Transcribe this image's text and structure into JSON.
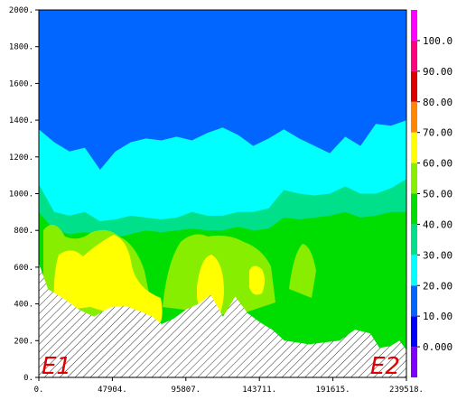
{
  "chart_data": {
    "type": "filled-contour cross-section",
    "title": "",
    "xlabel": "",
    "ylabel": "",
    "xlim": [
      0,
      239518
    ],
    "ylim": [
      0,
      2000
    ],
    "grid": false,
    "x_ticks": [
      0,
      47904,
      95807,
      143711,
      191615,
      239518
    ],
    "x_tick_labels": [
      "0.",
      "47904.",
      "95807.",
      "143711.",
      "191615.",
      "239518."
    ],
    "y_ticks": [
      0,
      200,
      400,
      600,
      800,
      1000,
      1200,
      1400,
      1600,
      1800,
      2000
    ],
    "y_tick_labels": [
      "0.",
      "200.",
      "400.",
      "600.",
      "800.",
      "1000.",
      "1200.",
      "1400.",
      "1600.",
      "1800.",
      "2000."
    ],
    "end_labels": [
      "E1",
      "E2"
    ],
    "terrain_fill": "hatched",
    "colorbar": {
      "placement": "right",
      "levels": [
        0,
        10,
        20,
        30,
        40,
        50,
        60,
        70,
        80,
        90,
        100
      ],
      "labels": [
        "0.000",
        "10.00",
        "20.00",
        "30.00",
        "40.00",
        "50.00",
        "60.00",
        "70.00",
        "80.00",
        "90.00",
        "100.0"
      ],
      "colors": [
        "#7f00ff",
        "#0000ff",
        "#0066ff",
        "#00ffff",
        "#00e08a",
        "#00dd00",
        "#88ee00",
        "#ffff00",
        "#ff8800",
        "#dd0000",
        "#ff0080",
        "#ff00ff"
      ]
    },
    "terrain_profile": {
      "x": [
        0,
        6000,
        16000,
        26000,
        36000,
        46000,
        56000,
        66000,
        74000,
        80000,
        88000,
        96000,
        104000,
        112000,
        120000,
        128000,
        136000,
        144000,
        152000,
        160000,
        168000,
        176000,
        186000,
        196000,
        206000,
        216000,
        222000,
        229000,
        235000,
        239518
      ],
      "y": [
        620,
        480,
        430,
        370,
        330,
        380,
        390,
        360,
        330,
        290,
        320,
        370,
        400,
        450,
        330,
        440,
        350,
        300,
        260,
        200,
        190,
        180,
        190,
        200,
        260,
        240,
        160,
        170,
        200,
        150
      ]
    },
    "region_tops_m": {
      "cyan_30_40": [
        1350,
        1280,
        1230,
        1250,
        1130,
        1230,
        1280,
        1300,
        1290,
        1310,
        1290,
        1330,
        1360,
        1320,
        1260,
        1300,
        1350,
        1300,
        1260,
        1220,
        1310,
        1260,
        1380,
        1370,
        1400
      ],
      "teal_40_50": [
        1050,
        900,
        880,
        900,
        850,
        860,
        880,
        870,
        860,
        870,
        900,
        880,
        880,
        900,
        900,
        920,
        1020,
        1000,
        990,
        1000,
        1040,
        1000,
        1000,
        1030,
        1080
      ],
      "green_50_60": [
        900,
        800,
        780,
        790,
        780,
        760,
        780,
        800,
        790,
        800,
        810,
        800,
        800,
        820,
        800,
        810,
        870,
        860,
        870,
        880,
        900,
        870,
        880,
        900,
        900
      ],
      "yellow_70_80_max_height": 680
    }
  }
}
